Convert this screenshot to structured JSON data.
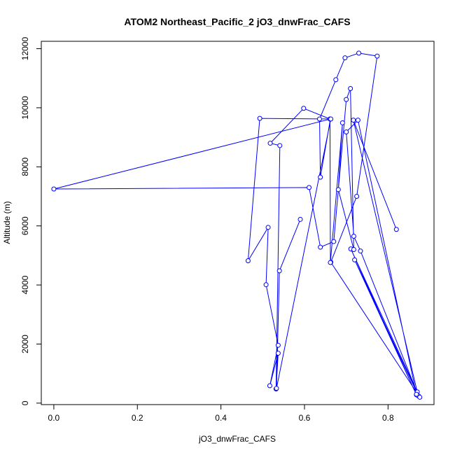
{
  "chart_data": {
    "type": "line",
    "title": "ATOM2 Northeast_Pacific_2 jO3_dnwFrac_CAFS",
    "xlabel": "jO3_dnwFrac_CAFS",
    "ylabel": "Altitude (m)",
    "xlim": [
      -0.03,
      0.91
    ],
    "ylim": [
      -50,
      12250
    ],
    "x_ticks": [
      {
        "value": 0,
        "label": "0.0"
      },
      {
        "value": 0.2,
        "label": "0.2"
      },
      {
        "value": 0.4,
        "label": "0.4"
      },
      {
        "value": 0.6,
        "label": "0.6"
      },
      {
        "value": 0.8,
        "label": "0.8"
      }
    ],
    "y_ticks": [
      {
        "value": 0,
        "label": "0"
      },
      {
        "value": 2000,
        "label": "2000"
      },
      {
        "value": 4000,
        "label": "4000"
      },
      {
        "value": 6000,
        "label": "6000"
      },
      {
        "value": 8000,
        "label": "8000"
      },
      {
        "value": 10000,
        "label": "10000"
      },
      {
        "value": 12000,
        "label": "12000"
      }
    ],
    "grid": false,
    "legend": "none",
    "color": "#0000ff",
    "series": [
      {
        "x": [
          0.82,
          0.717,
          0.87,
          0.711,
          0.868,
          0.72,
          0.873,
          0.734,
          0.718,
          0.7,
          0.728,
          0.868,
          0.876,
          0.663,
          0.725,
          0.774,
          0.73,
          0.697,
          0.675,
          0.636,
          0.638,
          0.662,
          0.0,
          0.611,
          0.638,
          0.67,
          0.7,
          0.71,
          0.718,
          0.681,
          0.691,
          0.662,
          0.661,
          0.598,
          0.518,
          0.541,
          0.532,
          0.537,
          0.517,
          0.537,
          0.508,
          0.513,
          0.465,
          0.493,
          0.663,
          0.533,
          0.54,
          0.59
        ],
        "y": [
          5880,
          9580,
          380,
          5220,
          280,
          4850,
          240,
          5150,
          5650,
          9180,
          9580,
          300,
          200,
          4770,
          7000,
          11750,
          11850,
          11690,
          10950,
          9620,
          7650,
          9620,
          7250,
          7300,
          5280,
          5470,
          10280,
          10650,
          5200,
          7230,
          9490,
          4760,
          9620,
          9980,
          8800,
          8720,
          480,
          1690,
          590,
          1960,
          4010,
          5950,
          4820,
          9640,
          9620,
          500,
          4480,
          6220
        ]
      }
    ]
  }
}
